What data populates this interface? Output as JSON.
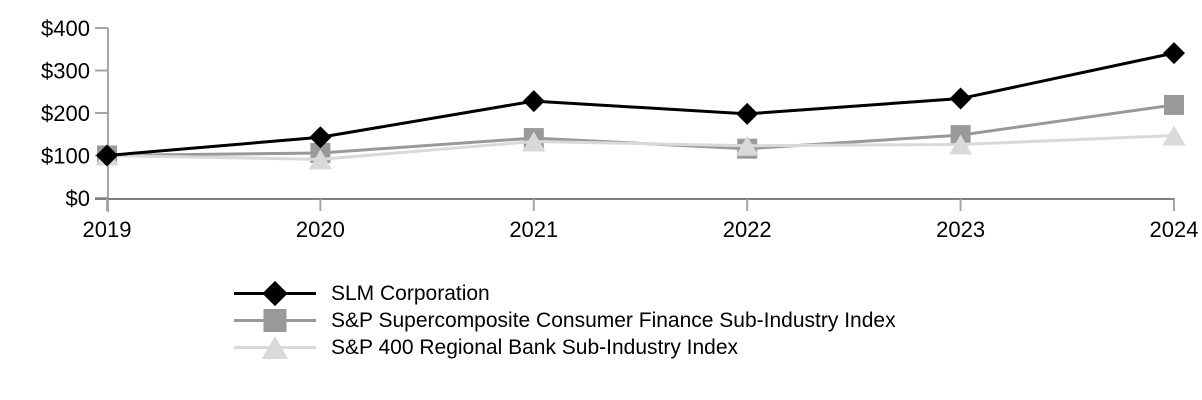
{
  "chart_data": {
    "type": "line",
    "x": [
      "2019",
      "2020",
      "2021",
      "2022",
      "2023",
      "2024"
    ],
    "series": [
      {
        "name": "SLM Corporation",
        "marker": "diamond",
        "color": "#000000",
        "values": [
          100,
          143,
          228,
          198,
          234,
          341
        ]
      },
      {
        "name": "S&P Supercomposite Consumer Finance Sub-Industry Index",
        "marker": "square",
        "color": "#999999",
        "values": [
          100,
          106,
          141,
          116,
          148,
          219
        ]
      },
      {
        "name": "S&P 400 Regional Bank Sub-Industry Index",
        "marker": "triangle",
        "color": "#D9D9D9",
        "values": [
          100,
          91,
          133,
          123,
          126,
          147
        ]
      }
    ],
    "title": "",
    "xlabel": "",
    "ylabel": "",
    "ylim": [
      0,
      400
    ],
    "y_tick_values": [
      0,
      100,
      200,
      300,
      400
    ],
    "y_tick_labels": [
      "$0",
      "$100",
      "$200",
      "$300",
      "$400"
    ],
    "grid": false,
    "legend_position": "bottom-left",
    "axis_colors": {
      "y_axis": "#A6A6A6",
      "x_axis": "#808080"
    }
  }
}
